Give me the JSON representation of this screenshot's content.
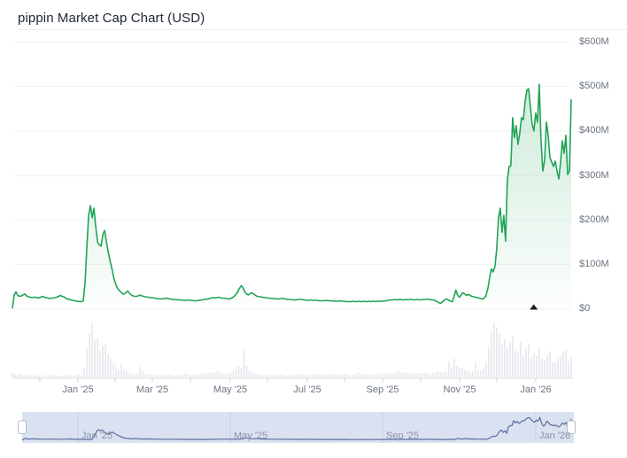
{
  "header": {
    "title": "pippin Market Cap Chart (USD)"
  },
  "colors": {
    "line": "#20a457",
    "area_fill_top": "rgba(32,164,87,0.22)",
    "area_fill_bottom": "rgba(32,164,87,0.01)",
    "gridline": "#f1f2f5",
    "axis_line": "#e2e5ea",
    "tick": "#ccd2da",
    "axis_text": "#6b7480",
    "volume_bar": "#e8eaef",
    "navigator_bg": "#dae1f0",
    "navigator_gridline": "#c7d0e5",
    "navigator_line": "#5a6e9d",
    "navigator_label": "#8b94a7",
    "handle_fill": "#ffffff",
    "handle_border": "#b3bdd0",
    "marker": "#1c1c1c"
  },
  "chart_data": {
    "type": "area",
    "title": "pippin Market Cap Chart (USD)",
    "currency": "USD",
    "legend": "none",
    "grid": "horizontal",
    "y_axis": {
      "position": "right",
      "unit": "USD millions",
      "ylim": [
        0,
        600
      ],
      "tick_values": [
        600,
        500,
        400,
        300,
        200,
        100,
        0
      ],
      "tick_labels": [
        "$600M",
        "$500M",
        "$400M",
        "$300M",
        "$200M",
        "$100M",
        "$0"
      ]
    },
    "x_axis": {
      "range_start": "mid-Nov 2024",
      "range_end": "late Jan 2026",
      "tick_labels": [
        "Jan '25",
        "Mar '25",
        "May '25",
        "Jul '25",
        "Sep '25",
        "Nov '25",
        "Jan '26"
      ]
    },
    "series": [
      {
        "name": "Market Cap",
        "note": "uniformly sampled over full x-range, values in $M USD",
        "values_musd": [
          2,
          30,
          38,
          30,
          28,
          29,
          31,
          33,
          29,
          27,
          26,
          25,
          26,
          26,
          25,
          24,
          26,
          28,
          26,
          25,
          24,
          23,
          24,
          24,
          25,
          26,
          28,
          30,
          28,
          27,
          24,
          22,
          21,
          20,
          19,
          18,
          17,
          17,
          16,
          16,
          18,
          60,
          140,
          210,
          232,
          205,
          226,
          185,
          150,
          144,
          141,
          168,
          176,
          150,
          128,
          108,
          92,
          72,
          58,
          48,
          42,
          38,
          34,
          33,
          36,
          40,
          35,
          31,
          29,
          28,
          28,
          29,
          31,
          29,
          28,
          27,
          26,
          26,
          25,
          25,
          24,
          23,
          23,
          22,
          22,
          23,
          23,
          24,
          23,
          22,
          21,
          21,
          21,
          20,
          20,
          20,
          19,
          19,
          19,
          20,
          19,
          19,
          18,
          18,
          18,
          19,
          19,
          20,
          21,
          21,
          22,
          23,
          24,
          25,
          24,
          25,
          26,
          25,
          24,
          24,
          23,
          23,
          22,
          23,
          25,
          28,
          32,
          38,
          46,
          52,
          47,
          38,
          33,
          31,
          34,
          36,
          33,
          30,
          28,
          27,
          27,
          26,
          25,
          25,
          24,
          24,
          23,
          23,
          23,
          22,
          22,
          23,
          23,
          23,
          22,
          21,
          21,
          21,
          20,
          20,
          20,
          21,
          21,
          21,
          20,
          20,
          19,
          19,
          20,
          19,
          19,
          19,
          19,
          18,
          18,
          18,
          18,
          19,
          18,
          18,
          18,
          17,
          17,
          17,
          17,
          18,
          17,
          17,
          16,
          16,
          16,
          16,
          17,
          16,
          16,
          17,
          16,
          16,
          17,
          16,
          16,
          17,
          16,
          17,
          17,
          16,
          17,
          17,
          17,
          17,
          18,
          18,
          19,
          20,
          20,
          20,
          21,
          20,
          21,
          21,
          20,
          20,
          21,
          20,
          21,
          21,
          20,
          20,
          21,
          20,
          20,
          21,
          21,
          21,
          22,
          21,
          20,
          20,
          19,
          17,
          15,
          12,
          14,
          18,
          21,
          22,
          19,
          17,
          16,
          28,
          42,
          30,
          26,
          31,
          36,
          33,
          30,
          32,
          30,
          28,
          27,
          26,
          25,
          24,
          23,
          22,
          24,
          30,
          45,
          70,
          90,
          83,
          95,
          135,
          205,
          226,
          172,
          210,
          152,
          290,
          320,
          322,
          430,
          385,
          412,
          370,
          395,
          430,
          425,
          465,
          492,
          495,
          455,
          415,
          400,
          440,
          420,
          505,
          380,
          310,
          335,
          420,
          390,
          340,
          330,
          320,
          332,
          310,
          292,
          330,
          378,
          350,
          390,
          302,
          310,
          470
        ]
      }
    ],
    "volume": {
      "note": "relative bar heights 0-1, uniformly sampled over full x-range",
      "heights_frac": [
        0.1,
        0.06,
        0.05,
        0.08,
        0.05,
        0.04,
        0.06,
        0.05,
        0.04,
        0.05,
        0.04,
        0.05,
        0.04,
        0.03,
        0.05,
        0.04,
        0.05,
        0.04,
        0.03,
        0.04,
        0.05,
        0.06,
        0.05,
        0.04,
        0.05,
        0.06,
        0.05,
        0.18,
        0.55,
        0.8,
        1.0,
        0.7,
        0.72,
        0.5,
        0.58,
        0.6,
        0.42,
        0.35,
        0.26,
        0.2,
        0.15,
        0.25,
        0.15,
        0.12,
        0.09,
        0.07,
        0.06,
        0.07,
        0.2,
        0.12,
        0.07,
        0.06,
        0.07,
        0.06,
        0.05,
        0.06,
        0.05,
        0.06,
        0.05,
        0.06,
        0.05,
        0.04,
        0.05,
        0.06,
        0.05,
        0.08,
        0.06,
        0.05,
        0.06,
        0.05,
        0.06,
        0.07,
        0.08,
        0.09,
        0.1,
        0.09,
        0.1,
        0.14,
        0.1,
        0.08,
        0.07,
        0.08,
        0.1,
        0.12,
        0.16,
        0.22,
        0.18,
        0.5,
        0.22,
        0.14,
        0.1,
        0.08,
        0.07,
        0.06,
        0.05,
        0.06,
        0.05,
        0.06,
        0.05,
        0.06,
        0.05,
        0.06,
        0.05,
        0.04,
        0.05,
        0.06,
        0.05,
        0.06,
        0.07,
        0.06,
        0.05,
        0.06,
        0.05,
        0.06,
        0.07,
        0.08,
        0.06,
        0.05,
        0.06,
        0.07,
        0.08,
        0.06,
        0.05,
        0.06,
        0.07,
        0.08,
        0.06,
        0.05,
        0.06,
        0.07,
        0.1,
        0.07,
        0.06,
        0.07,
        0.06,
        0.07,
        0.06,
        0.07,
        0.08,
        0.07,
        0.08,
        0.09,
        0.1,
        0.08,
        0.09,
        0.12,
        0.1,
        0.09,
        0.1,
        0.08,
        0.09,
        0.08,
        0.09,
        0.08,
        0.09,
        0.1,
        0.09,
        0.08,
        0.09,
        0.1,
        0.12,
        0.1,
        0.11,
        0.12,
        0.3,
        0.18,
        0.35,
        0.22,
        0.16,
        0.18,
        0.14,
        0.12,
        0.1,
        0.11,
        0.28,
        0.14,
        0.12,
        0.16,
        0.3,
        0.55,
        0.85,
        1.0,
        0.92,
        0.8,
        0.6,
        0.7,
        0.55,
        0.65,
        0.75,
        0.5,
        0.45,
        0.65,
        0.42,
        0.52,
        0.6,
        0.38,
        0.45,
        0.4,
        0.55,
        0.35,
        0.32,
        0.42,
        0.48,
        0.28,
        0.27,
        0.35,
        0.4,
        0.48,
        0.52,
        0.3,
        0.38
      ]
    },
    "event_marker": {
      "symbol": "triangle-up",
      "x_frac": 0.933,
      "at_value": 0
    },
    "navigator": {
      "tick_labels": [
        "Jan '25",
        "May '25",
        "Sep '25",
        "Jan '26"
      ],
      "handles": [
        "left",
        "right"
      ],
      "selected_range": "full"
    }
  }
}
